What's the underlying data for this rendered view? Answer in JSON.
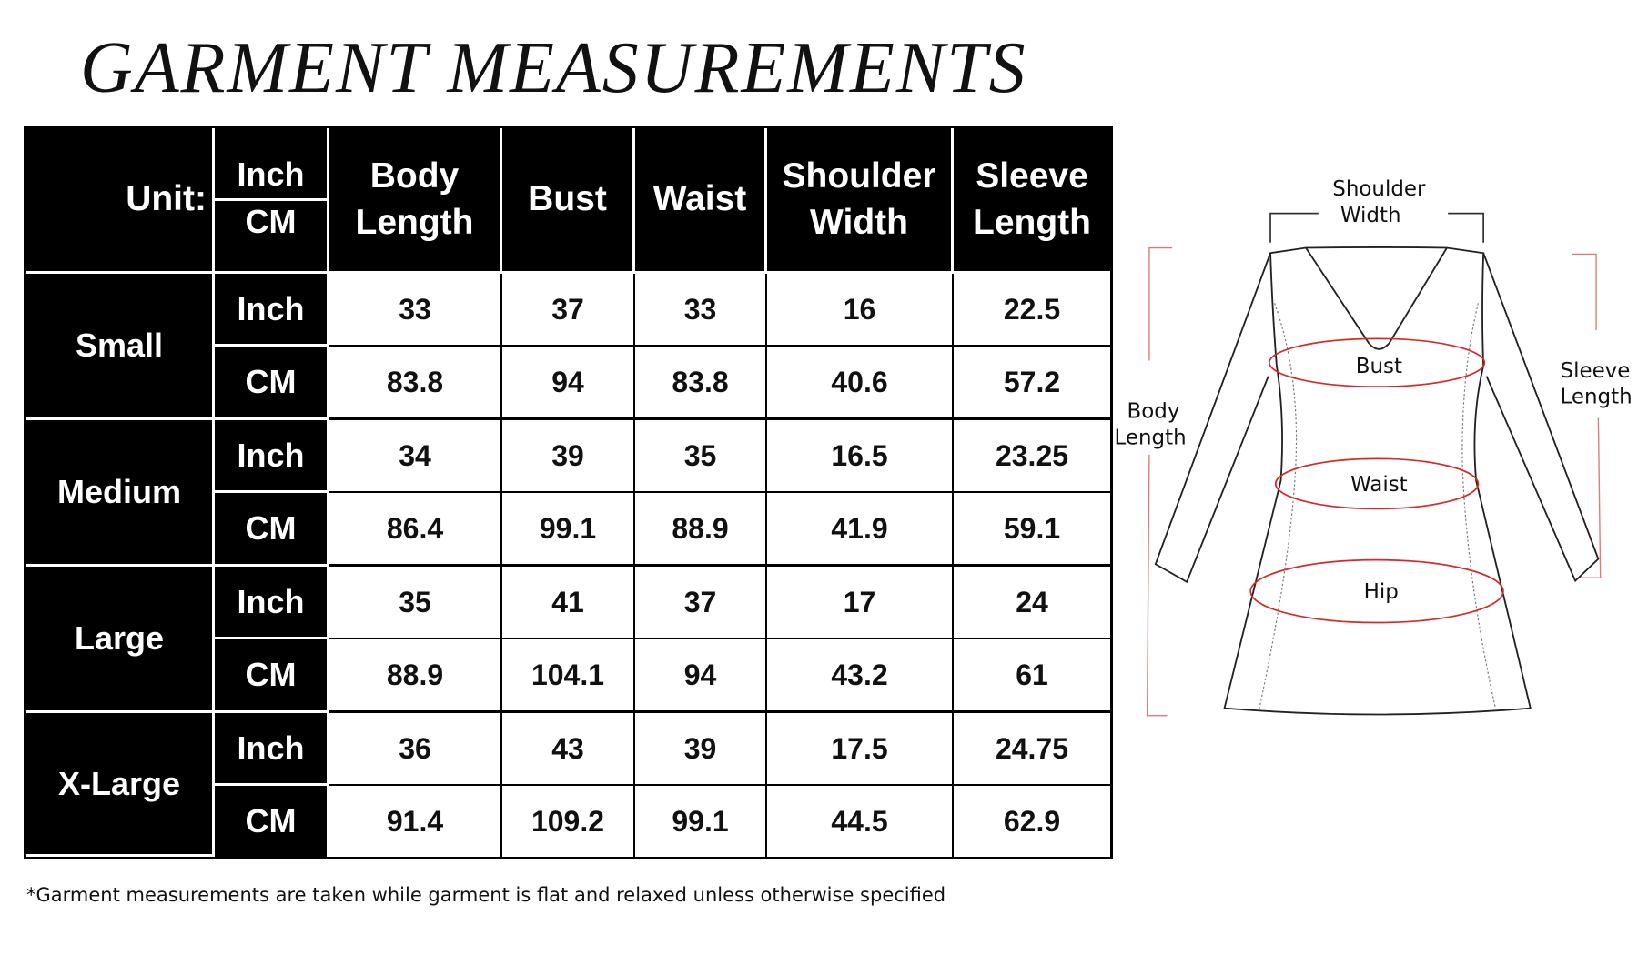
{
  "title": "GARMENT MEASUREMENTS",
  "table": {
    "unit_label": "Unit:",
    "unit_options": [
      "Inch",
      "CM"
    ],
    "columns": [
      "Body Length",
      "Bust",
      "Waist",
      "Shoulder Width",
      "Sleeve Length"
    ],
    "sizes": [
      {
        "name": "Small",
        "rows": [
          {
            "unit": "Inch",
            "values": [
              "33",
              "37",
              "33",
              "16",
              "22.5"
            ]
          },
          {
            "unit": "CM",
            "values": [
              "83.8",
              "94",
              "83.8",
              "40.6",
              "57.2"
            ]
          }
        ]
      },
      {
        "name": "Medium",
        "rows": [
          {
            "unit": "Inch",
            "values": [
              "34",
              "39",
              "35",
              "16.5",
              "23.25"
            ]
          },
          {
            "unit": "CM",
            "values": [
              "86.4",
              "99.1",
              "88.9",
              "41.9",
              "59.1"
            ]
          }
        ]
      },
      {
        "name": "Large",
        "rows": [
          {
            "unit": "Inch",
            "values": [
              "35",
              "41",
              "37",
              "17",
              "24"
            ]
          },
          {
            "unit": "CM",
            "values": [
              "88.9",
              "104.1",
              "94",
              "43.2",
              "61"
            ]
          }
        ]
      },
      {
        "name": "X-Large",
        "rows": [
          {
            "unit": "Inch",
            "values": [
              "36",
              "43",
              "39",
              "17.5",
              "24.75"
            ]
          },
          {
            "unit": "CM",
            "values": [
              "91.4",
              "109.2",
              "99.1",
              "44.5",
              "62.9"
            ]
          }
        ]
      }
    ]
  },
  "footnote": "*Garment measurements are taken while garment is flat and relaxed unless otherwise specified",
  "diagram": {
    "shoulder_width": [
      "Shoulder",
      "Width"
    ],
    "body_length": [
      "Body",
      "Length"
    ],
    "sleeve_length": [
      "Sleeve",
      "Length"
    ],
    "bust": "Bust",
    "waist": "Waist",
    "hip": "Hip",
    "colors": {
      "outline": "#222222",
      "measure": "#d62a2a",
      "bracket": "#e07a7a"
    }
  }
}
